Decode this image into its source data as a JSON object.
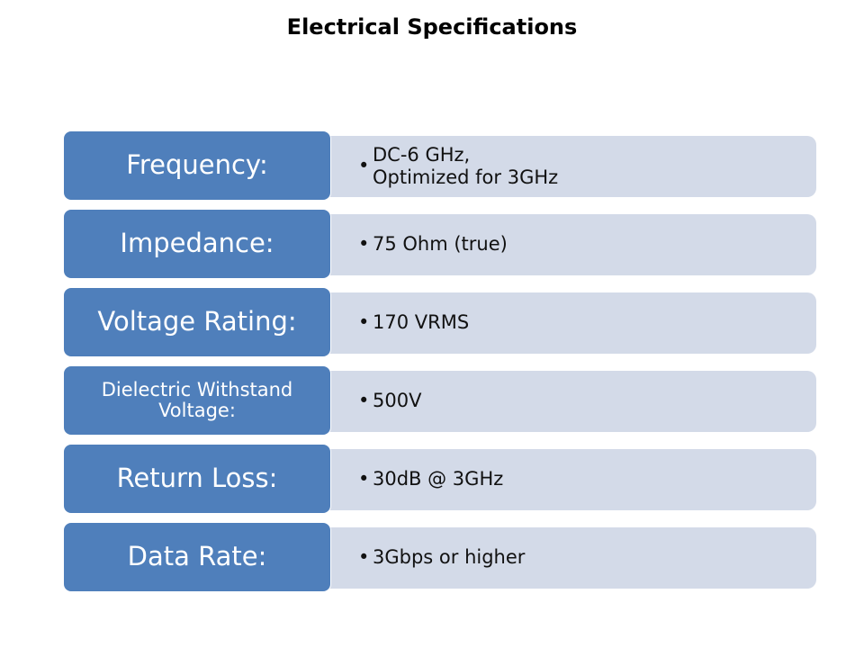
{
  "title": "Electrical Specifications",
  "rows": [
    {
      "label": "Frequency:",
      "detail": [
        "DC-6 GHz,",
        "Optimized for 3GHz"
      ]
    },
    {
      "label": "Impedance:",
      "detail": [
        "75 Ohm (true)"
      ]
    },
    {
      "label": "Voltage Rating:",
      "detail": [
        "170 VRMS"
      ]
    },
    {
      "label": "Dielectric Withstand Voltage:",
      "detail": [
        "500V"
      ]
    },
    {
      "label": "Return Loss:",
      "detail": [
        "30dB @ 3GHz"
      ]
    },
    {
      "label": "Data Rate:",
      "detail": [
        "3Gbps or higher"
      ]
    }
  ]
}
